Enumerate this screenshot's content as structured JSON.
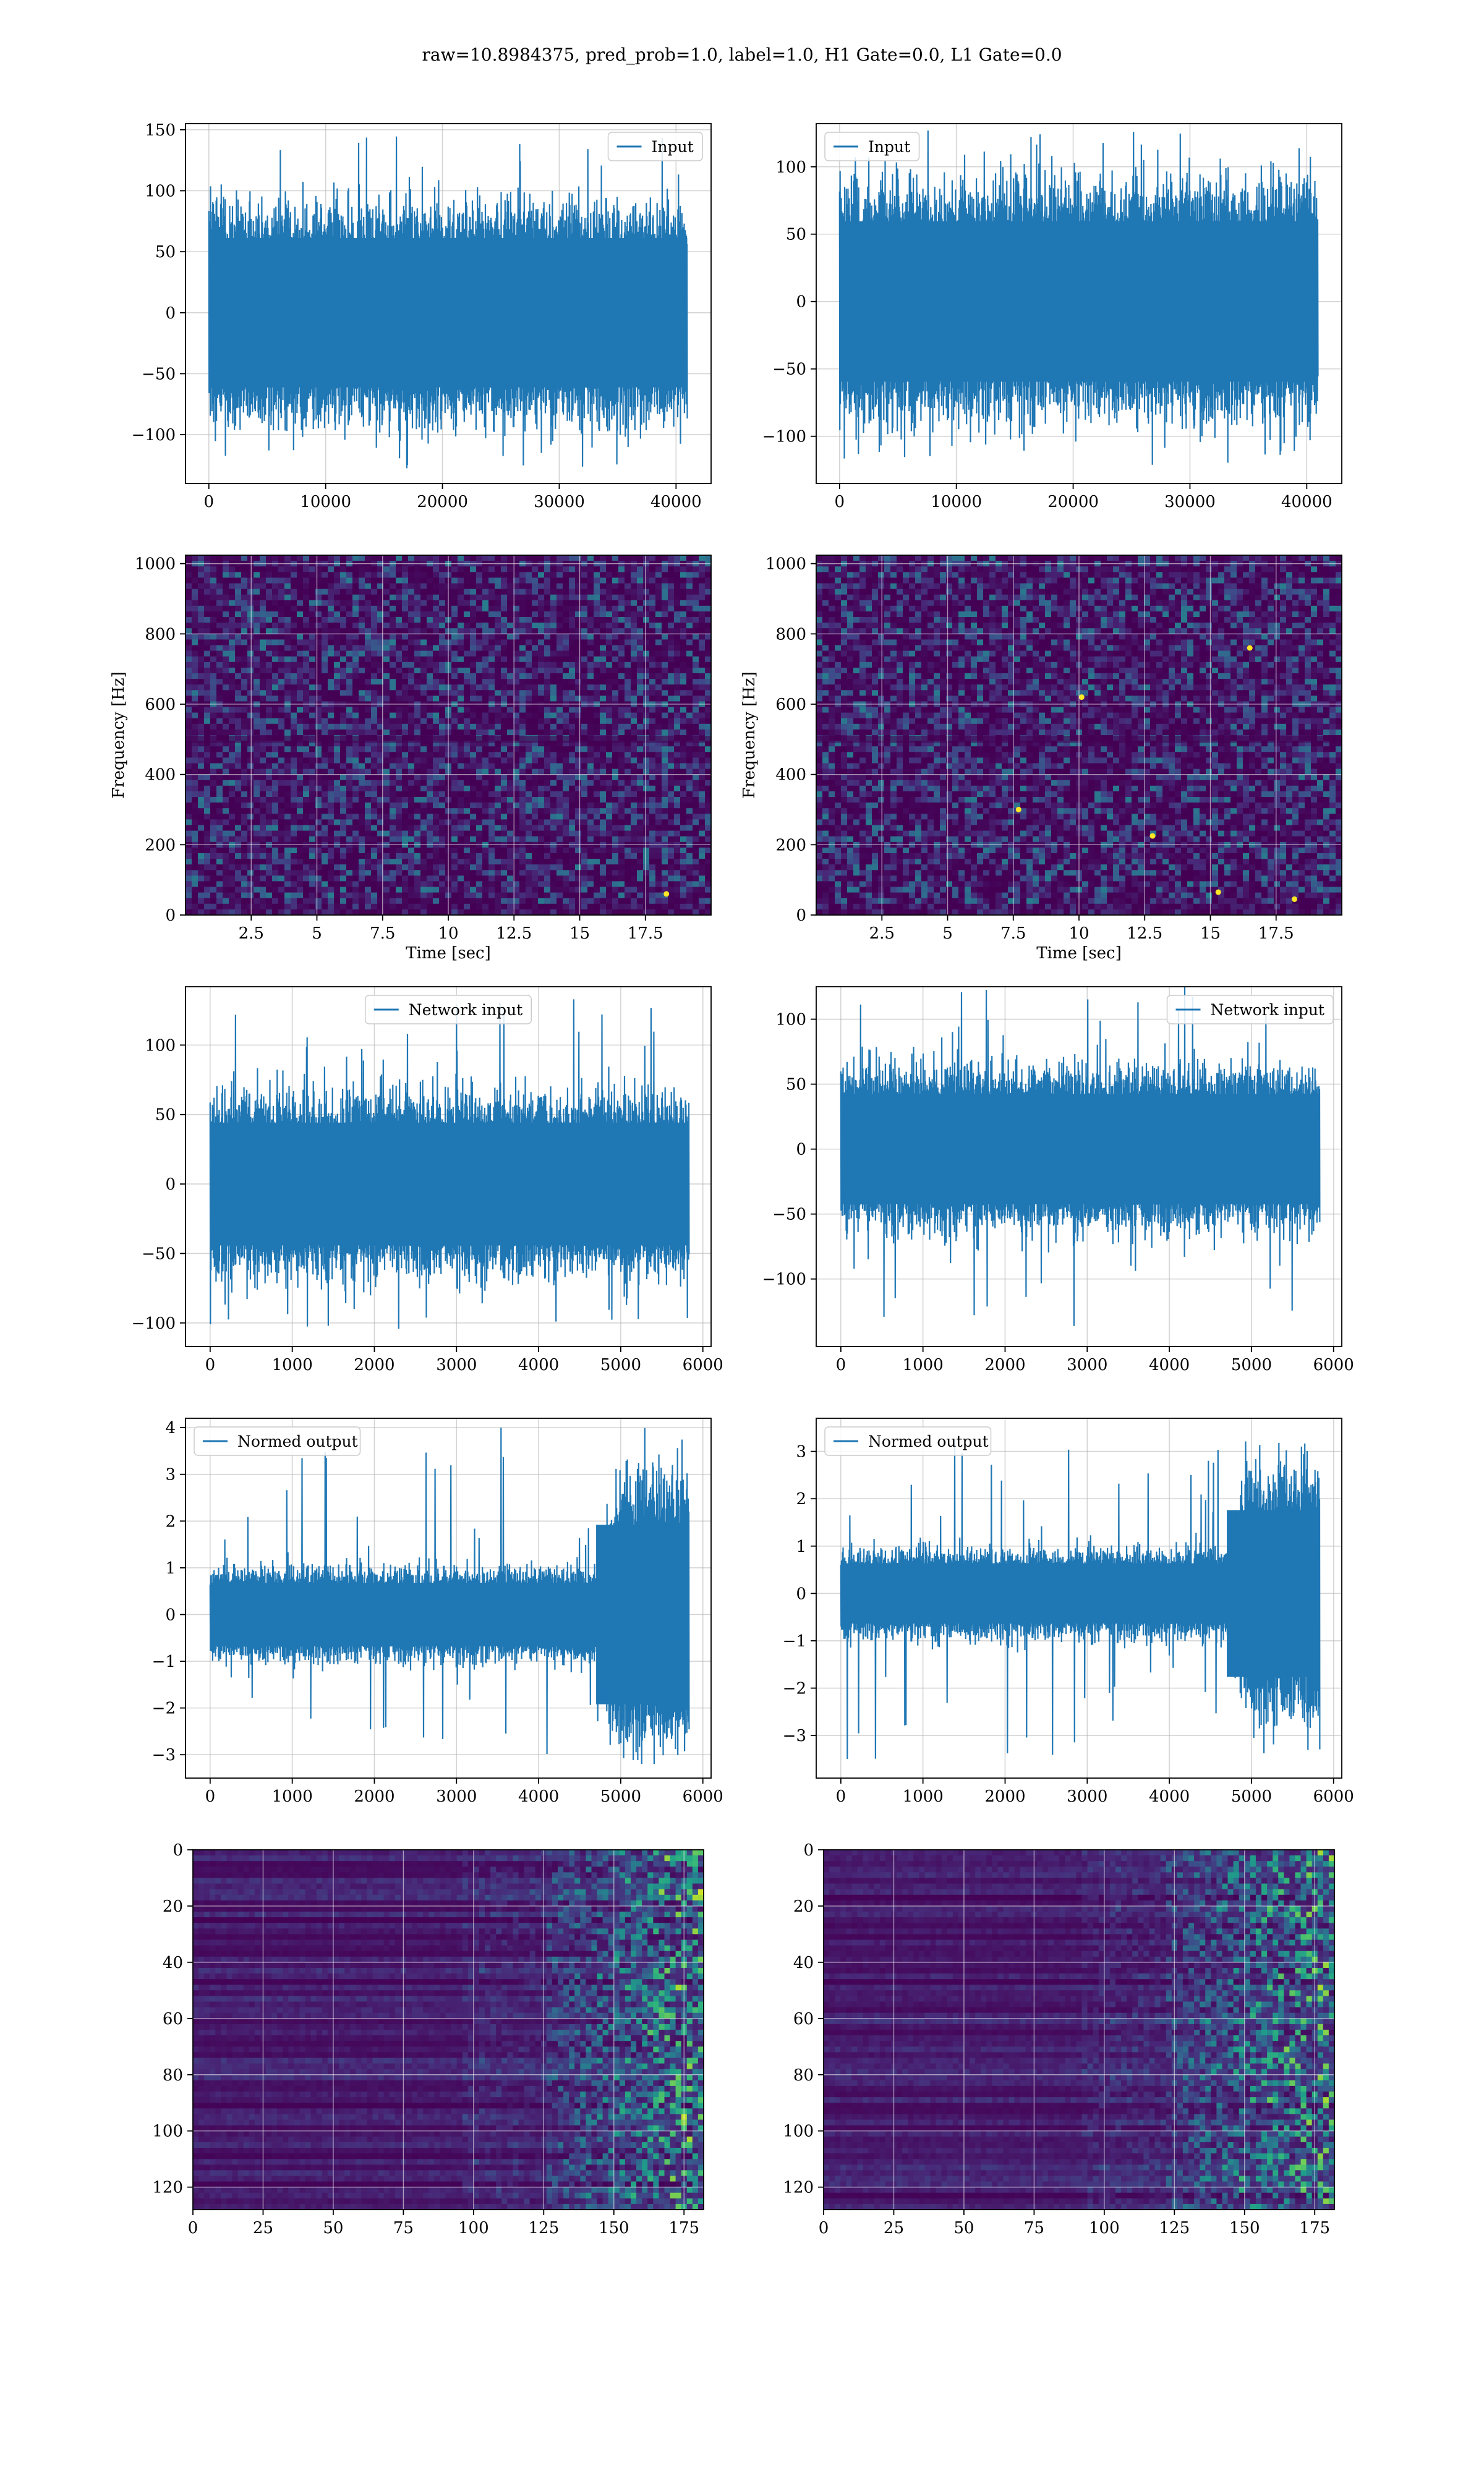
{
  "figure": {
    "suptitle": "raw=10.8984375, pred_prob=1.0, label=1.0, H1 Gate=0.0, L1 Gate=0.0"
  },
  "colors": {
    "line": "#1f77b4",
    "grid": "#b0b0b0",
    "viridis_dark": "#440154",
    "viridis_mid": "#3b528b",
    "viridis_teal": "#21918c",
    "viridis_green": "#5ec962",
    "viridis_yellow": "#fde725"
  },
  "chart_data": [
    {
      "id": "input-left",
      "type": "line",
      "legend": [
        "Input"
      ],
      "legend_loc": "upper right",
      "xlim": [
        -2000,
        43000
      ],
      "ylim": [
        -140,
        155
      ],
      "xticks": [
        0,
        10000,
        20000,
        30000,
        40000
      ],
      "yticks": [
        -100,
        -50,
        0,
        50,
        100,
        150
      ],
      "grid": true,
      "signal": {
        "x_start": 0,
        "x_end": 40960,
        "typical_abs": 72,
        "peak_max": 145,
        "peak_min": -128
      }
    },
    {
      "id": "input-right",
      "type": "line",
      "legend": [
        "Input"
      ],
      "legend_loc": "upper left",
      "xlim": [
        -2000,
        43000
      ],
      "ylim": [
        -135,
        132
      ],
      "xticks": [
        0,
        10000,
        20000,
        30000,
        40000
      ],
      "yticks": [
        -100,
        -50,
        0,
        50,
        100
      ],
      "grid": true,
      "signal": {
        "x_start": 0,
        "x_end": 40960,
        "typical_abs": 70,
        "peak_max": 127,
        "peak_min": -123
      }
    },
    {
      "id": "spectrogram-left",
      "type": "heatmap",
      "xlabel": "Time [sec]",
      "ylabel": "Frequency [Hz]",
      "xlim": [
        0,
        20
      ],
      "ylim": [
        0,
        1024
      ],
      "xticks": [
        2.5,
        5.0,
        7.5,
        10.0,
        12.5,
        15.0,
        17.5
      ],
      "yticks": [
        0,
        200,
        400,
        600,
        800,
        1000
      ],
      "grid": true,
      "colormap": "viridis",
      "hotspots": [
        [
          18.3,
          60
        ]
      ]
    },
    {
      "id": "spectrogram-right",
      "type": "heatmap",
      "xlabel": "Time [sec]",
      "ylabel": "Frequency [Hz]",
      "xlim": [
        0,
        20
      ],
      "ylim": [
        0,
        1024
      ],
      "xticks": [
        2.5,
        5.0,
        7.5,
        10.0,
        12.5,
        15.0,
        17.5
      ],
      "yticks": [
        0,
        200,
        400,
        600,
        800,
        1000
      ],
      "grid": true,
      "colormap": "viridis",
      "hotspots": [
        [
          7.7,
          300
        ],
        [
          12.8,
          225
        ],
        [
          15.3,
          65
        ],
        [
          18.2,
          45
        ],
        [
          10.1,
          620
        ],
        [
          16.5,
          760
        ]
      ]
    },
    {
      "id": "network-input-left",
      "type": "line",
      "legend": [
        "Network input"
      ],
      "legend_loc": "upper center",
      "xlim": [
        -300,
        6100
      ],
      "ylim": [
        -117,
        142
      ],
      "xticks": [
        0,
        1000,
        2000,
        3000,
        4000,
        5000,
        6000
      ],
      "yticks": [
        -100,
        -50,
        0,
        50,
        100
      ],
      "grid": true,
      "signal": {
        "x_start": 0,
        "x_end": 5832,
        "typical_abs": 52,
        "peak_max": 133,
        "peak_min": -105
      }
    },
    {
      "id": "network-input-right",
      "type": "line",
      "legend": [
        "Network input"
      ],
      "legend_loc": "upper right",
      "xlim": [
        -300,
        6100
      ],
      "ylim": [
        -152,
        125
      ],
      "xticks": [
        0,
        1000,
        2000,
        3000,
        4000,
        5000,
        6000
      ],
      "yticks": [
        -100,
        -50,
        0,
        50,
        100
      ],
      "grid": true,
      "signal": {
        "x_start": 0,
        "x_end": 5832,
        "typical_abs": 50,
        "peak_max": 126,
        "peak_min": -137
      }
    },
    {
      "id": "normed-output-left",
      "type": "line",
      "legend": [
        "Normed output"
      ],
      "legend_loc": "upper left",
      "xlim": [
        -300,
        6100
      ],
      "ylim": [
        -3.5,
        4.2
      ],
      "xticks": [
        0,
        1000,
        2000,
        3000,
        4000,
        5000,
        6000
      ],
      "yticks": [
        -3,
        -2,
        -1,
        0,
        1,
        2,
        3,
        4
      ],
      "grid": true,
      "signal": {
        "x_start": 0,
        "x_end": 5832,
        "typical_abs": 0.8,
        "burst_start": 4700,
        "burst_abs": 2.4,
        "peak_max": 4.0,
        "peak_min": -3.2
      }
    },
    {
      "id": "normed-output-right",
      "type": "line",
      "legend": [
        "Normed output"
      ],
      "legend_loc": "upper left",
      "xlim": [
        -300,
        6100
      ],
      "ylim": [
        -3.9,
        3.7
      ],
      "xticks": [
        0,
        1000,
        2000,
        3000,
        4000,
        5000,
        6000
      ],
      "yticks": [
        -3,
        -2,
        -1,
        0,
        1,
        2,
        3
      ],
      "grid": true,
      "signal": {
        "x_start": 0,
        "x_end": 5832,
        "typical_abs": 0.75,
        "burst_start": 4700,
        "burst_abs": 2.2,
        "peak_max": 3.5,
        "peak_min": -3.5
      }
    },
    {
      "id": "feature-map-left",
      "type": "heatmap",
      "xlim": [
        0,
        182
      ],
      "ylim": [
        128,
        0
      ],
      "xticks": [
        0,
        25,
        50,
        75,
        100,
        125,
        150,
        175
      ],
      "yticks": [
        0,
        20,
        40,
        60,
        80,
        100,
        120
      ],
      "grid": true,
      "colormap": "viridis",
      "rows": 128,
      "cols": 182,
      "activity_onset": 125
    },
    {
      "id": "feature-map-right",
      "type": "heatmap",
      "xlim": [
        0,
        182
      ],
      "ylim": [
        128,
        0
      ],
      "xticks": [
        0,
        25,
        50,
        75,
        100,
        125,
        150,
        175
      ],
      "yticks": [
        0,
        20,
        40,
        60,
        80,
        100,
        120
      ],
      "grid": true,
      "colormap": "viridis",
      "rows": 128,
      "cols": 182,
      "activity_onset": 120
    }
  ]
}
